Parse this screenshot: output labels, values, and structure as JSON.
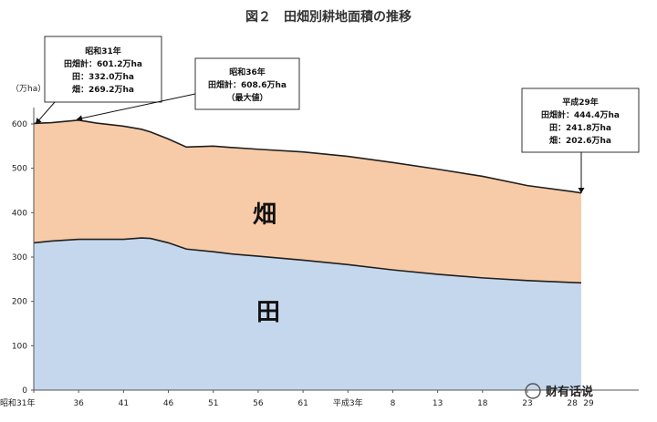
{
  "chart_data": {
    "type": "area",
    "title": "図２　田畑別耕地面積の推移",
    "ylabel": "（万ha）",
    "ylim": [
      0,
      600
    ],
    "yticks": [
      "0",
      "100",
      "200",
      "300",
      "400",
      "500",
      "600"
    ],
    "xticks": [
      "昭和31年",
      "36",
      "41",
      "46",
      "51",
      "56",
      "61",
      "平成3年",
      "8",
      "13",
      "18",
      "23",
      "28",
      "29"
    ],
    "x": [
      "昭和31年",
      "33",
      "36",
      "38",
      "41",
      "43",
      "44",
      "46",
      "48",
      "51",
      "53",
      "56",
      "61",
      "平成3年",
      "8",
      "13",
      "18",
      "23",
      "28",
      "29"
    ],
    "series": [
      {
        "name": "田",
        "color": "#c5d7ec",
        "values": [
          332.0,
          336,
          340,
          340,
          340,
          343,
          342,
          332,
          318,
          312,
          307,
          302,
          293,
          283,
          271,
          261,
          253,
          247,
          242.5,
          241.8
        ]
      },
      {
        "name": "畑",
        "color": "#f8cba8",
        "values": [
          269.2,
          267,
          268.6,
          262,
          255,
          245,
          240,
          234,
          230,
          238,
          240,
          241,
          244,
          244,
          242,
          237,
          229,
          214,
          205,
          202.6
        ]
      }
    ],
    "annotations": [
      {
        "lines": [
          "昭和31年",
          "田畑計：601.2万ha",
          "田：332.0万ha",
          "畑：269.2万ha"
        ]
      },
      {
        "lines": [
          "昭和36年",
          "田畑計：608.6万ha",
          "（最大値）"
        ]
      },
      {
        "lines": [
          "平成29年",
          "田畑計：444.4万ha",
          "田：241.8万ha",
          "畑：202.6万ha"
        ]
      }
    ],
    "grid": false,
    "legend": "none"
  },
  "watermark": "财有话说"
}
